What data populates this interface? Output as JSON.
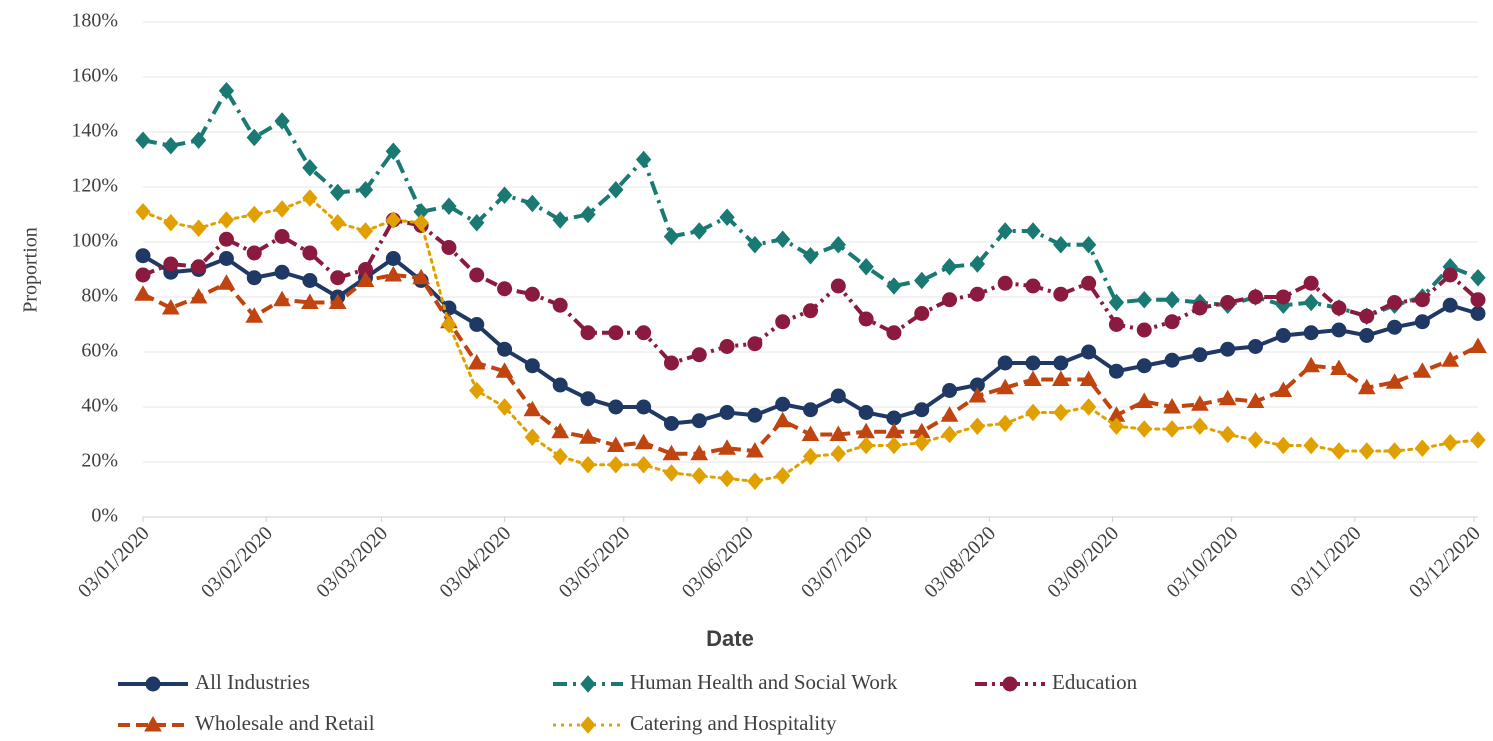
{
  "chart_data": {
    "type": "line",
    "xlabel": "Date",
    "ylabel": "Proportion",
    "x": [
      0,
      7,
      14,
      21,
      28,
      35,
      42,
      49,
      56,
      63,
      70,
      77,
      84,
      91,
      98,
      105,
      112,
      119,
      126,
      133,
      140,
      147,
      154,
      161,
      168,
      175,
      182,
      189,
      196,
      203,
      210,
      217,
      224,
      231,
      238,
      245,
      252,
      259,
      266,
      273,
      280,
      287,
      294,
      301,
      308,
      315,
      322,
      329,
      336
    ],
    "xlim": [
      0,
      336
    ],
    "xticks": [
      {
        "value": 0,
        "label": "03/01/2020"
      },
      {
        "value": 31,
        "label": "03/02/2020"
      },
      {
        "value": 60,
        "label": "03/03/2020"
      },
      {
        "value": 91,
        "label": "03/04/2020"
      },
      {
        "value": 121,
        "label": "03/05/2020"
      },
      {
        "value": 152,
        "label": "03/06/2020"
      },
      {
        "value": 182,
        "label": "03/07/2020"
      },
      {
        "value": 213,
        "label": "03/08/2020"
      },
      {
        "value": 244,
        "label": "03/09/2020"
      },
      {
        "value": 274,
        "label": "03/10/2020"
      },
      {
        "value": 305,
        "label": "03/11/2020"
      },
      {
        "value": 335,
        "label": "03/12/2020"
      }
    ],
    "ylim": [
      0,
      180
    ],
    "yticks": [
      {
        "value": 0,
        "label": "0%"
      },
      {
        "value": 20,
        "label": "20%"
      },
      {
        "value": 40,
        "label": "40%"
      },
      {
        "value": 60,
        "label": "60%"
      },
      {
        "value": 80,
        "label": "80%"
      },
      {
        "value": 100,
        "label": "100%"
      },
      {
        "value": 120,
        "label": "120%"
      },
      {
        "value": 140,
        "label": "140%"
      },
      {
        "value": 160,
        "label": "160%"
      },
      {
        "value": 180,
        "label": "180%"
      }
    ],
    "grid": true,
    "legend": "bottom",
    "series": [
      {
        "name": "All Industries",
        "color": "#1f3864",
        "marker": "circle",
        "dash": "solid",
        "values": [
          95,
          89,
          90,
          94,
          87,
          89,
          86,
          80,
          87,
          94,
          86,
          76,
          70,
          61,
          55,
          48,
          43,
          40,
          40,
          34,
          35,
          38,
          37,
          41,
          39,
          44,
          38,
          36,
          39,
          46,
          48,
          56,
          56,
          56,
          60,
          53,
          55,
          57,
          59,
          61,
          62,
          66,
          67,
          68,
          66,
          69,
          71,
          77,
          74
        ]
      },
      {
        "name": "Human Health and Social Work",
        "color": "#1a7a73",
        "marker": "diamond",
        "dash": "dashdot",
        "values": [
          137,
          135,
          137,
          155,
          138,
          144,
          127,
          118,
          119,
          133,
          111,
          113,
          107,
          117,
          114,
          108,
          110,
          119,
          130,
          102,
          104,
          109,
          99,
          101,
          95,
          99,
          91,
          84,
          86,
          91,
          92,
          104,
          104,
          99,
          99,
          78,
          79,
          79,
          78,
          77,
          80,
          77,
          78,
          76,
          73,
          77,
          80,
          91,
          87
        ]
      },
      {
        "name": "Education",
        "color": "#8b1a3f",
        "marker": "circle",
        "dash": "dashdotdot",
        "values": [
          88,
          92,
          91,
          101,
          96,
          102,
          96,
          87,
          90,
          108,
          106,
          98,
          88,
          83,
          81,
          77,
          67,
          67,
          67,
          56,
          59,
          62,
          63,
          71,
          75,
          84,
          72,
          67,
          74,
          79,
          81,
          85,
          84,
          81,
          85,
          70,
          68,
          71,
          76,
          78,
          80,
          80,
          85,
          76,
          73,
          78,
          79,
          88,
          79
        ]
      },
      {
        "name": "Wholesale and Retail",
        "color": "#c0440f",
        "marker": "triangle",
        "dash": "dash",
        "values": [
          81,
          76,
          80,
          85,
          73,
          79,
          78,
          78,
          86,
          88,
          87,
          71,
          56,
          53,
          39,
          31,
          29,
          26,
          27,
          23,
          23,
          25,
          24,
          35,
          30,
          30,
          31,
          31,
          31,
          37,
          44,
          47,
          50,
          50,
          50,
          37,
          42,
          40,
          41,
          43,
          42,
          46,
          55,
          54,
          47,
          49,
          53,
          57,
          62
        ]
      },
      {
        "name": "Catering and Hospitality",
        "color": "#e0a000",
        "marker": "diamond",
        "dash": "dot",
        "values": [
          111,
          107,
          105,
          108,
          110,
          112,
          116,
          107,
          104,
          108,
          107,
          70,
          46,
          40,
          29,
          22,
          19,
          19,
          19,
          16,
          15,
          14,
          13,
          15,
          22,
          23,
          26,
          26,
          27,
          30,
          33,
          34,
          38,
          38,
          40,
          33,
          32,
          32,
          33,
          30,
          28,
          26,
          26,
          24,
          24,
          24,
          25,
          27,
          28
        ]
      }
    ]
  }
}
